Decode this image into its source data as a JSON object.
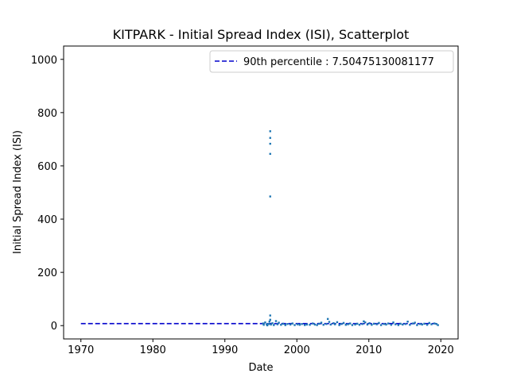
{
  "chart_data": {
    "type": "scatter",
    "title": "KITPARK - Initial Spread Index (ISI), Scatterplot",
    "xlabel": "Date",
    "ylabel": "Initial Spread Index (ISI)",
    "xlim": [
      1967.6,
      2022.4
    ],
    "ylim": [
      -50,
      1050
    ],
    "xticks": [
      1970,
      1980,
      1990,
      2000,
      2010,
      2020
    ],
    "yticks": [
      0,
      200,
      400,
      600,
      800,
      1000
    ],
    "legend_position": "top-right",
    "reference_line": {
      "label": "90th percentile : 7.50475130081177",
      "value": 7.50475130081177,
      "x_range": [
        1970,
        2019.7
      ],
      "color": "#0000cc",
      "style": "dashed"
    },
    "series": [
      {
        "color": "#1f77b4",
        "points": [
          [
            1995.3,
            8
          ],
          [
            1995.4,
            3
          ],
          [
            1995.6,
            12
          ],
          [
            1995.8,
            5
          ],
          [
            1995.9,
            1
          ],
          [
            1996.1,
            6
          ],
          [
            1996.2,
            15
          ],
          [
            1996.3,
            730
          ],
          [
            1996.3,
            705
          ],
          [
            1996.3,
            683
          ],
          [
            1996.3,
            645
          ],
          [
            1996.3,
            485
          ],
          [
            1996.3,
            38
          ],
          [
            1996.3,
            22
          ],
          [
            1996.4,
            4
          ],
          [
            1996.6,
            9
          ],
          [
            1996.8,
            2
          ],
          [
            1997.1,
            17
          ],
          [
            1997.3,
            5
          ],
          [
            1997.5,
            11
          ],
          [
            1997.8,
            3
          ],
          [
            1998.1,
            7
          ],
          [
            1998.4,
            2
          ],
          [
            1998.7,
            6
          ],
          [
            1999.1,
            4
          ],
          [
            1999.4,
            8
          ],
          [
            1999.7,
            2
          ],
          [
            2000.1,
            5
          ],
          [
            2000.4,
            3
          ],
          [
            2000.7,
            6
          ],
          [
            2001.1,
            2
          ],
          [
            2001.4,
            4
          ],
          [
            2001.8,
            3
          ],
          [
            2002.2,
            8
          ],
          [
            2002.5,
            4
          ],
          [
            2002.8,
            2
          ],
          [
            2003.1,
            7
          ],
          [
            2003.4,
            11
          ],
          [
            2003.7,
            3
          ],
          [
            2004.1,
            6
          ],
          [
            2004.3,
            25
          ],
          [
            2004.5,
            14
          ],
          [
            2004.7,
            4
          ],
          [
            2005.1,
            9
          ],
          [
            2005.3,
            5
          ],
          [
            2005.6,
            13
          ],
          [
            2005.9,
            2
          ],
          [
            2006.2,
            6
          ],
          [
            2006.5,
            10
          ],
          [
            2006.8,
            3
          ],
          [
            2007.1,
            5
          ],
          [
            2007.4,
            8
          ],
          [
            2007.7,
            2
          ],
          [
            2008.1,
            4
          ],
          [
            2008.4,
            7
          ],
          [
            2008.7,
            3
          ],
          [
            2009.1,
            6
          ],
          [
            2009.3,
            16
          ],
          [
            2009.5,
            12
          ],
          [
            2009.8,
            4
          ],
          [
            2010.1,
            9
          ],
          [
            2010.4,
            3
          ],
          [
            2010.7,
            7
          ],
          [
            2011.1,
            5
          ],
          [
            2011.4,
            10
          ],
          [
            2011.7,
            2
          ],
          [
            2012.1,
            6
          ],
          [
            2012.4,
            4
          ],
          [
            2012.7,
            8
          ],
          [
            2013.1,
            3
          ],
          [
            2013.4,
            12
          ],
          [
            2013.7,
            5
          ],
          [
            2014.1,
            2
          ],
          [
            2014.4,
            7
          ],
          [
            2014.7,
            4
          ],
          [
            2015.1,
            6
          ],
          [
            2015.4,
            15
          ],
          [
            2015.7,
            3
          ],
          [
            2016.1,
            8
          ],
          [
            2016.4,
            11
          ],
          [
            2016.7,
            2
          ],
          [
            2017.1,
            6
          ],
          [
            2017.4,
            4
          ],
          [
            2017.7,
            7
          ],
          [
            2018.1,
            3
          ],
          [
            2018.4,
            10
          ],
          [
            2018.7,
            5
          ],
          [
            2019.1,
            8
          ],
          [
            2019.4,
            6
          ],
          [
            2019.6,
            2
          ]
        ]
      }
    ]
  }
}
